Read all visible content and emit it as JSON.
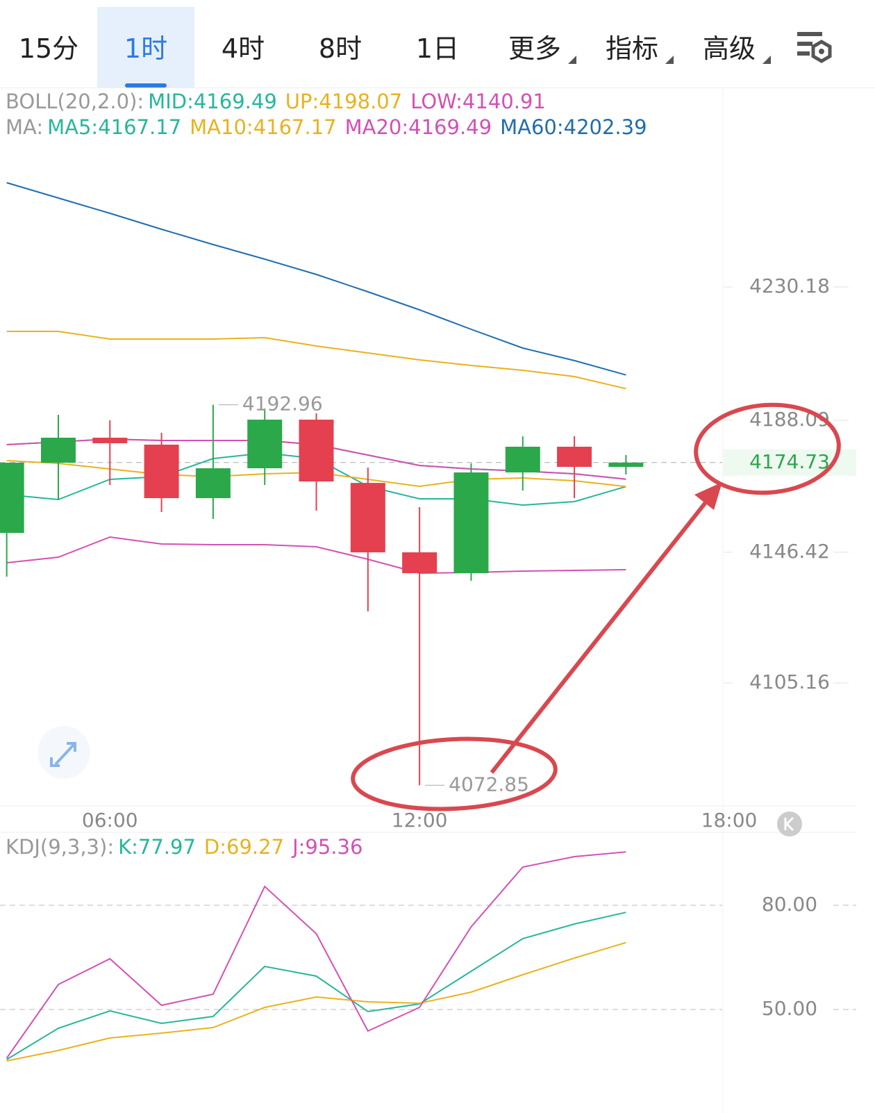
{
  "tabs": [
    "15分",
    "1时",
    "4时",
    "8时",
    "1日",
    "更多",
    "指标",
    "高级"
  ],
  "chart_data": [
    {
      "type": "candlestick",
      "x": [
        4,
        5,
        6,
        7,
        8,
        9,
        10,
        11,
        12,
        13,
        14,
        15,
        16
      ],
      "xlim": [
        3.87,
        18
      ],
      "xticks": [
        {
          "value": 6,
          "label": "06:00"
        },
        {
          "value": 12,
          "label": "12:00"
        },
        {
          "value": 18,
          "label": "18:00"
        }
      ],
      "ylim": [
        4066.33,
        4292.25
      ],
      "yticks": [
        4230.18,
        4188.09,
        4146.42,
        4105.16
      ],
      "up_color": "#2ba84a",
      "down_color": "#e5404f",
      "open": [
        4152.53,
        4174.69,
        4182.58,
        4180.39,
        4163.5,
        4172.93,
        4188.28,
        4168.3,
        4146.39,
        4139.81,
        4171.61,
        4179.73,
        4173.37
      ],
      "high": [
        4174.69,
        4189.82,
        4188.07,
        4184.13,
        4192.96,
        4191.79,
        4190.26,
        4173.15,
        4160.65,
        4174.47,
        4183.02,
        4183.02,
        4177.1
      ],
      "low": [
        4138.71,
        4163.06,
        4167.67,
        4159.1,
        4156.92,
        4167.67,
        4159.55,
        4127.75,
        4072.85,
        4137.4,
        4165.91,
        4163.5,
        4170.96
      ],
      "close": [
        4174.69,
        4182.58,
        4180.83,
        4163.5,
        4172.93,
        4188.28,
        4168.76,
        4146.39,
        4139.81,
        4171.61,
        4179.73,
        4173.37,
        4174.73
      ],
      "boll": {
        "label": "BOLL(20,2.0):",
        "series": [
          {
            "name": "MID:",
            "color": "#26b79a",
            "values": [
              4180.39,
              4181.26,
              4182.14,
              4181.7,
              4181.7,
              4181.7,
              4180.39,
              4177.1,
              4173.81,
              4172.71,
              4172.05,
              4171.18,
              4169.49
            ]
          },
          {
            "name": "UP:",
            "color": "#e9b21c",
            "values": [
              4216.14,
              4216.14,
              4213.73,
              4213.73,
              4213.73,
              4214.17,
              4211.54,
              4209.34,
              4207.15,
              4205.39,
              4203.86,
              4201.88,
              4198.07
            ]
          },
          {
            "name": "LOW:",
            "color": "#d450b4",
            "values": [
              4143.1,
              4144.85,
              4151.21,
              4149.02,
              4148.8,
              4148.8,
              4148.14,
              4144.19,
              4139.81,
              4140.03,
              4140.47,
              4140.69,
              4140.91
            ]
          }
        ]
      },
      "ma": {
        "label": "MA:",
        "series": [
          {
            "name": "MA5:",
            "color": "#26b79a",
            "values": [
              4164.59,
              4163.06,
              4169.42,
              4170.3,
              4176.0,
              4177.76,
              4176.0,
              4167.23,
              4163.28,
              4163.28,
              4161.3,
              4162.4,
              4167.17
            ]
          },
          {
            "name": "MA10:",
            "color": "#e9b21c",
            "values": [
              4175.34,
              4174.47,
              4172.71,
              4170.96,
              4170.3,
              4171.18,
              4171.61,
              4169.42,
              4167.23,
              4169.42,
              4169.86,
              4168.98,
              4167.17
            ]
          },
          {
            "name": "MA20:",
            "color": "#d450b4",
            "values": [
              4180.39,
              4181.26,
              4182.14,
              4181.7,
              4181.7,
              4181.7,
              4180.39,
              4177.1,
              4173.81,
              4172.71,
              4172.05,
              4171.18,
              4169.49
            ]
          },
          {
            "name": "MA60:",
            "color": "#1f6db0",
            "values": [
              4263.08,
              4258.26,
              4253.43,
              4248.39,
              4243.56,
              4238.95,
              4234.13,
              4228.64,
              4222.94,
              4216.8,
              4210.88,
              4206.93,
              4202.39
            ]
          }
        ]
      }
    },
    {
      "type": "line",
      "label": "KDJ(9,3,3):",
      "x": [
        4,
        5,
        6,
        7,
        8,
        9,
        10,
        11,
        12,
        13,
        14,
        15,
        16
      ],
      "xlim": [
        3.87,
        18
      ],
      "ylim": [
        28.6,
        100.6
      ],
      "yticks": [
        {
          "value": 80,
          "label": "80.00"
        },
        {
          "value": 50,
          "label": "50.00"
        }
      ],
      "grid": true,
      "series": [
        {
          "name": "K:",
          "color": "#26b79a",
          "values": [
            35.6,
            44.6,
            49.6,
            46.0,
            48.0,
            62.4,
            59.6,
            49.4,
            51.6,
            61.0,
            70.4,
            74.6,
            77.97
          ]
        },
        {
          "name": "D:",
          "color": "#e9b21c",
          "values": [
            35.2,
            38.2,
            41.8,
            43.2,
            44.8,
            50.6,
            53.6,
            52.2,
            51.8,
            55.0,
            60.0,
            64.8,
            69.27
          ]
        },
        {
          "name": "J:",
          "color": "#d450b4",
          "values": [
            36.0,
            57.2,
            64.6,
            51.2,
            54.4,
            85.4,
            71.8,
            43.8,
            50.6,
            73.8,
            91.0,
            94.0,
            95.36
          ]
        }
      ]
    }
  ]
}
